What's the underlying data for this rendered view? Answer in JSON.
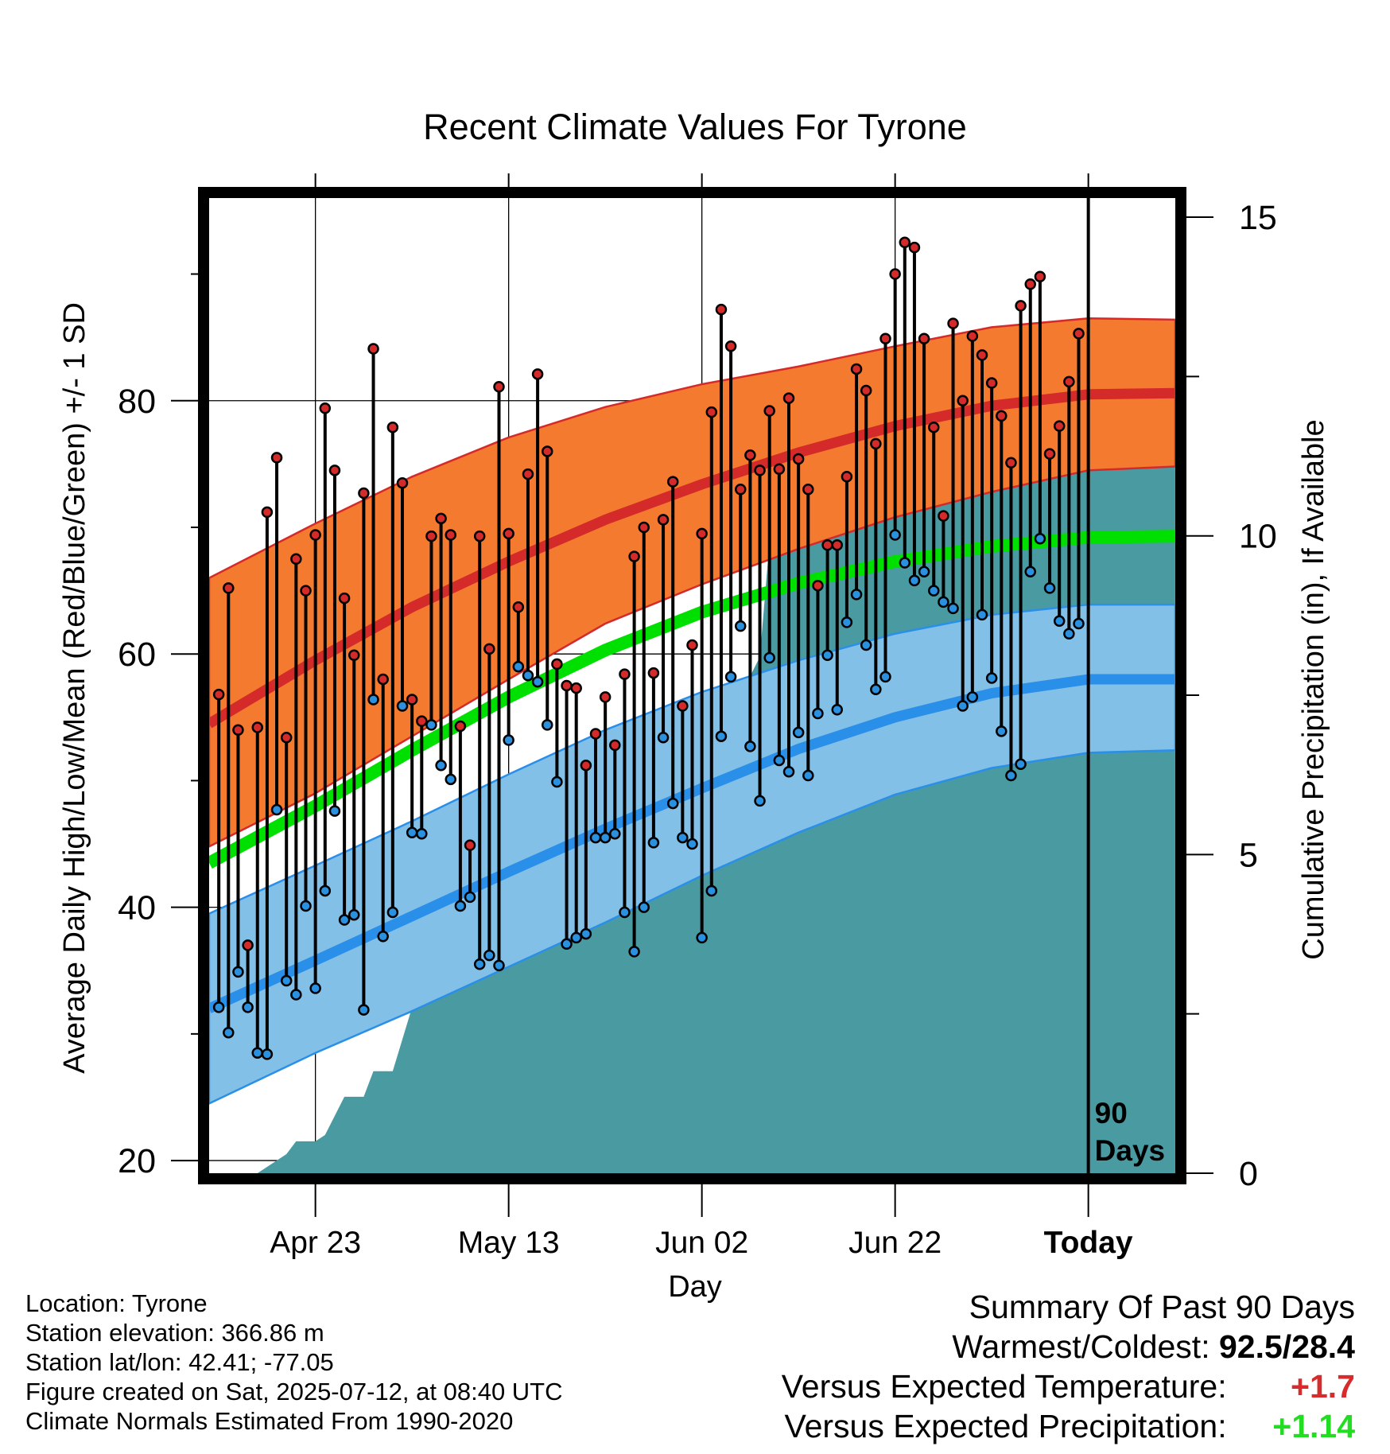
{
  "chart_data": {
    "type": "line",
    "title": "Recent Climate Values For Tyrone",
    "xlabel": "Day",
    "ylabel_left": "Average Daily High/Low/Mean (Red/Blue/Green) +/- 1 SD",
    "ylabel_right": "Cumulative Precipitation (in), If Available",
    "x_ticks": [
      "Apr 23",
      "May 13",
      "Jun 02",
      "Jun 22",
      "Today"
    ],
    "x_tick_days": [
      10,
      30,
      50,
      70,
      90
    ],
    "x_range": [
      -1,
      99
    ],
    "y_left_ticks": [
      "20",
      "40",
      "60",
      "80"
    ],
    "y_left_values": [
      20,
      40,
      60,
      80
    ],
    "y_left_range": [
      19,
      96
    ],
    "y_right_ticks": [
      "0",
      "5",
      "10",
      "15"
    ],
    "y_right_values": [
      0,
      5,
      10,
      15
    ],
    "y_right_range": [
      0,
      15.3
    ],
    "marker_label": "90 Days",
    "normals": {
      "days": [
        -1,
        10,
        20,
        30,
        40,
        50,
        60,
        70,
        80,
        90,
        99
      ],
      "high_mean": [
        54.5,
        59.5,
        63.7,
        67.3,
        70.6,
        73.4,
        75.9,
        78.0,
        79.6,
        80.5,
        80.6
      ],
      "high_upper": [
        66.0,
        70.3,
        74.0,
        77.1,
        79.5,
        81.3,
        82.7,
        84.3,
        85.8,
        86.5,
        86.4
      ],
      "high_lower": [
        44.8,
        49.0,
        53.5,
        58.0,
        62.4,
        65.5,
        68.3,
        70.8,
        72.8,
        74.5,
        74.8
      ],
      "mean": [
        43.5,
        48.0,
        52.4,
        56.6,
        60.3,
        63.3,
        65.6,
        67.3,
        68.5,
        69.2,
        69.3
      ],
      "low_mean": [
        32.0,
        35.8,
        39.3,
        42.8,
        46.2,
        49.4,
        52.5,
        55.0,
        56.9,
        58.0,
        58.0
      ],
      "low_upper": [
        39.5,
        43.3,
        46.8,
        50.5,
        54.0,
        57.0,
        59.5,
        61.6,
        63.1,
        63.9,
        63.9
      ],
      "low_lower": [
        24.5,
        28.5,
        31.8,
        35.3,
        38.8,
        42.5,
        45.9,
        48.9,
        51.0,
        52.2,
        52.4
      ]
    },
    "series": [
      {
        "name": "High",
        "color": "#d42a2a",
        "values": [
          56.8,
          65.2,
          54.0,
          37.0,
          54.2,
          71.2,
          75.5,
          53.4,
          67.5,
          65.0,
          69.4,
          79.4,
          74.5,
          64.4,
          59.9,
          72.7,
          84.1,
          58.0,
          77.9,
          73.5,
          56.4,
          54.7,
          69.3,
          70.7,
          69.4,
          54.3,
          44.9,
          69.3,
          60.4,
          81.1,
          69.5,
          63.7,
          74.2,
          82.1,
          76.0,
          59.2,
          57.5,
          57.3,
          51.2,
          53.7,
          56.6,
          52.8,
          58.4,
          67.7,
          70.0,
          58.5,
          70.6,
          73.6,
          55.9,
          60.7,
          69.5,
          79.1,
          87.2,
          84.3,
          73.0,
          75.7,
          74.5,
          79.2,
          74.6,
          80.2,
          75.4,
          73.0,
          65.4,
          68.6,
          68.6,
          74.0,
          82.5,
          80.8,
          76.6,
          84.9,
          90.0,
          92.5,
          92.1,
          84.9,
          77.9,
          70.9,
          86.1,
          80.0,
          85.1,
          83.6,
          81.4,
          78.8,
          75.1,
          87.5,
          89.2,
          89.8,
          75.8,
          78.0,
          81.5,
          85.3
        ]
      },
      {
        "name": "Low",
        "color": "#2a90e0",
        "values": [
          32.1,
          30.1,
          34.9,
          32.1,
          28.5,
          28.4,
          47.7,
          34.2,
          33.1,
          40.1,
          33.6,
          41.3,
          47.6,
          39.0,
          39.4,
          31.9,
          56.4,
          37.7,
          39.6,
          55.9,
          45.9,
          45.8,
          54.4,
          51.2,
          50.1,
          40.1,
          40.8,
          35.5,
          36.2,
          35.4,
          53.2,
          59.0,
          58.3,
          57.8,
          54.4,
          49.9,
          37.1,
          37.6,
          37.9,
          45.5,
          45.5,
          45.8,
          39.6,
          36.5,
          40.0,
          45.1,
          53.4,
          48.2,
          45.5,
          45.0,
          37.6,
          41.3,
          53.5,
          58.2,
          62.2,
          52.7,
          48.4,
          59.7,
          51.6,
          50.7,
          53.8,
          50.4,
          55.3,
          59.9,
          55.6,
          62.5,
          64.7,
          60.7,
          57.2,
          58.2,
          69.4,
          67.2,
          65.8,
          66.5,
          65.0,
          64.1,
          63.6,
          55.9,
          56.6,
          63.1,
          58.1,
          53.9,
          50.4,
          51.3,
          66.5,
          69.1,
          65.2,
          62.6,
          61.6,
          62.4
        ]
      },
      {
        "name": "Precipitation",
        "color": "#4a9aa2",
        "values": [
          0,
          0,
          0,
          0,
          0,
          0.1,
          0.2,
          0.3,
          0.5,
          0.5,
          0.5,
          0.6,
          0.9,
          1.2,
          1.2,
          1.2,
          1.6,
          1.6,
          1.6,
          2.1,
          2.6,
          2.9,
          3.1,
          3.7,
          4.0,
          4.0,
          4.1,
          4.1,
          4.1,
          4.1,
          4.1,
          4.1,
          4.4,
          4.6,
          4.8,
          4.8,
          4.8,
          4.8,
          5.4,
          5.5,
          5.5,
          5.6,
          5.7,
          5.7,
          5.7,
          5.7,
          6.3,
          6.3,
          6.4,
          6.4,
          6.4,
          6.4,
          6.4,
          6.4,
          6.9,
          7.8,
          8.1,
          9.9,
          9.9,
          9.9,
          10.0,
          10.0,
          10.0,
          10.0,
          10.0,
          10.1,
          10.1,
          11.2,
          11.4,
          11.4,
          11.4,
          11.5,
          11.5,
          11.5,
          11.5,
          11.6,
          11.7,
          11.8,
          12.0,
          12.1,
          12.2,
          12.3,
          12.3,
          12.3,
          12.3,
          12.4,
          12.4,
          12.4,
          12.5,
          12.5,
          12.5,
          12.5
        ]
      }
    ]
  },
  "footer": {
    "location": "Location: Tyrone",
    "elevation": "Station elevation: 366.86 m",
    "latlon": "Station lat/lon: 42.41; -77.05",
    "created": "Figure created on Sat, 2025-07-12, at 08:40 UTC",
    "normals": "Climate Normals Estimated From 1990-2020"
  },
  "summary": {
    "title": "Summary Of Past 90 Days",
    "warm_cold_label": "Warmest/Coldest:",
    "warm_cold_value": "92.5/28.4",
    "temp_label": "Versus Expected Temperature:",
    "temp_value": "+1.7",
    "precip_label": "Versus Expected Precipitation:",
    "precip_value": "+1.14"
  },
  "colors": {
    "high_band": "#f47a30",
    "high_line": "#d42a2a",
    "low_band": "#82c0e8",
    "low_line": "#2a8fe8",
    "mean_line": "#00e000",
    "precip_fill": "#4a9aa2"
  }
}
